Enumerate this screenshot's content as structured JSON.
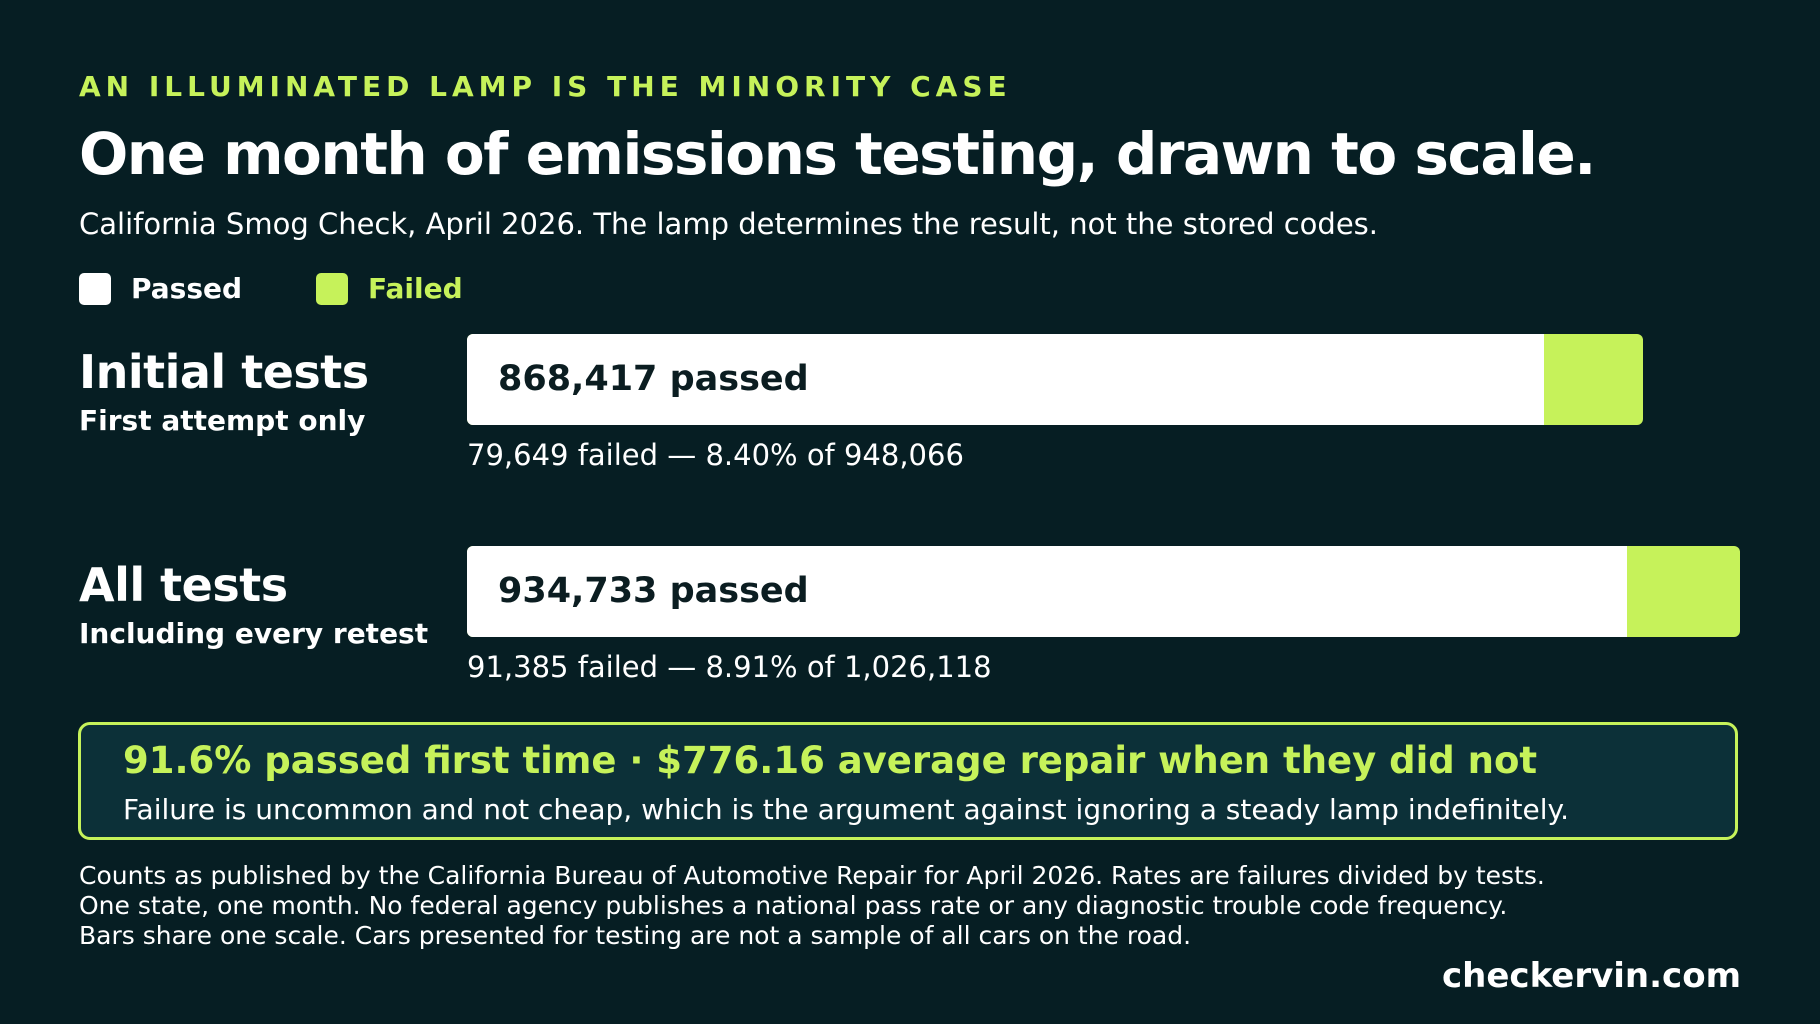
{
  "header": {
    "eyebrow": "AN ILLUMINATED LAMP IS THE MINORITY CASE",
    "title": "One month of emissions testing, drawn to scale.",
    "subtitle": "California Smog Check, April 2026. The lamp determines the result, not the stored codes."
  },
  "legend": {
    "passed_label": "Passed",
    "failed_label": "Failed"
  },
  "colors": {
    "passed": "#ffffff",
    "failed": "#c6f25a",
    "background": "#061e23"
  },
  "chart_data": {
    "type": "bar",
    "orientation": "horizontal",
    "stacked": true,
    "shared_scale": true,
    "categories": [
      "Initial tests",
      "All tests"
    ],
    "category_subtitles": [
      "First attempt only",
      "Including every retest"
    ],
    "series": [
      {
        "name": "Passed",
        "values": [
          868417,
          934733
        ]
      },
      {
        "name": "Failed",
        "values": [
          79649,
          91385
        ]
      }
    ],
    "bar_labels": [
      "868,417 passed",
      "934,733 passed"
    ],
    "bar_notes": [
      "79,649 failed — 8.40% of 948,066",
      "91,385 failed — 8.91% of 1,026,118"
    ],
    "totals": [
      948066,
      1026118
    ],
    "xlim": [
      0,
      1026118
    ],
    "legend": "top-left",
    "grid": false
  },
  "callout": {
    "headline": "91.6% passed first time · $776.16 average repair when they did not",
    "body": "Failure is uncommon and not cheap, which is the argument against ignoring a steady lamp indefinitely."
  },
  "footnote": [
    "Counts as published by the California Bureau of Automotive Repair for April 2026. Rates are failures divided by tests.",
    "One state, one month. No federal agency publishes a national pass rate or any diagnostic trouble code frequency.",
    "Bars share one scale. Cars presented for testing are not a sample of all cars on the road."
  ],
  "brand": "checkervin.com"
}
